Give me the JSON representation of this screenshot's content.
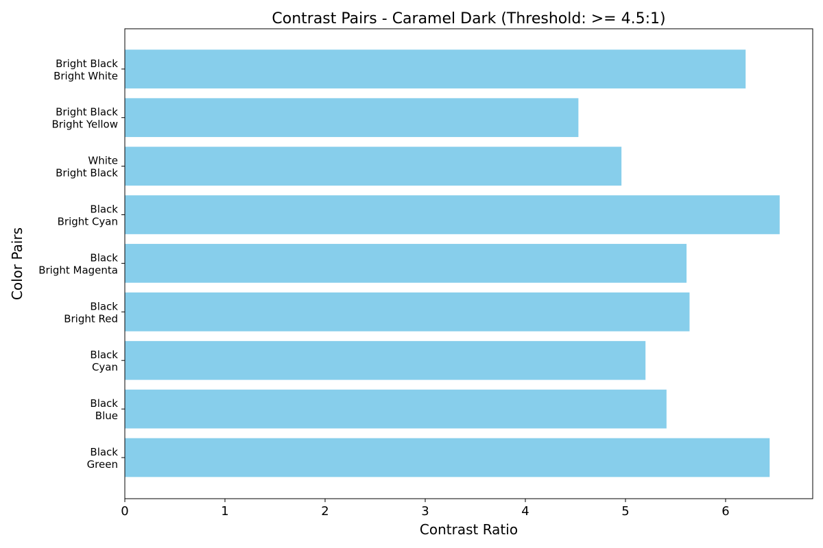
{
  "chart_data": {
    "type": "bar",
    "orientation": "horizontal",
    "title": "Contrast Pairs - Caramel Dark (Threshold: >= 4.5:1)",
    "xlabel": "Contrast Ratio",
    "ylabel": "Color Pairs",
    "categories": [
      [
        "Black",
        "Green"
      ],
      [
        "Black",
        "Blue"
      ],
      [
        "Black",
        "Cyan"
      ],
      [
        "Black",
        "Bright Red"
      ],
      [
        "Black",
        "Bright Magenta"
      ],
      [
        "Black",
        "Bright Cyan"
      ],
      [
        "White",
        "Bright Black"
      ],
      [
        "Bright Black",
        "Bright Yellow"
      ],
      [
        "Bright Black",
        "Bright White"
      ]
    ],
    "values": [
      6.44,
      5.41,
      5.2,
      5.64,
      5.61,
      6.54,
      4.96,
      4.53,
      6.2
    ],
    "xlim": [
      0,
      6.87
    ],
    "xticks": [
      0,
      1,
      2,
      3,
      4,
      5,
      6
    ],
    "bar_color": "#87ceeb",
    "grid": false,
    "legend": "none"
  }
}
